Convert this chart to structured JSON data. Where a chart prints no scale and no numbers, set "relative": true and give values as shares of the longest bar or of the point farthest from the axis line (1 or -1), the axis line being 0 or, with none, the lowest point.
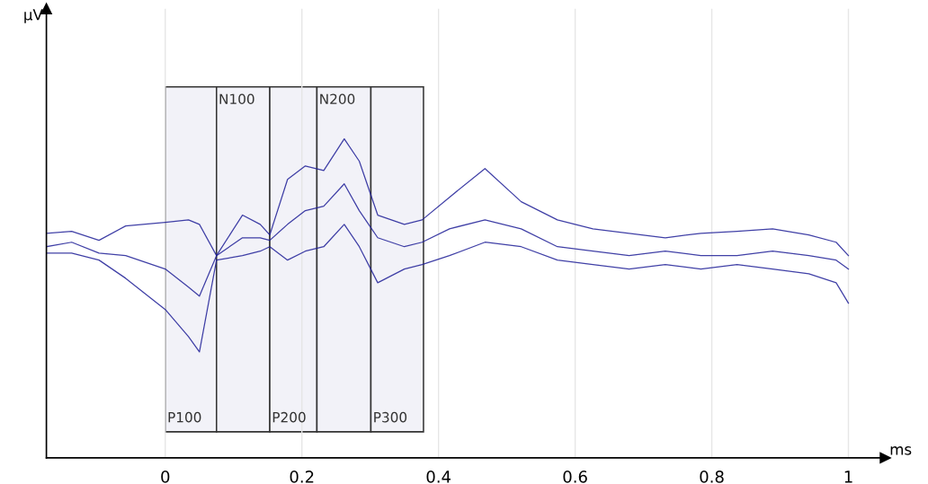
{
  "chart_data": {
    "type": "line",
    "relative": true,
    "xlabel": "ms",
    "annotations": [
      "μV"
    ],
    "x": [
      -0.174,
      -0.137,
      -0.097,
      -0.058,
      0,
      0.034,
      0.05,
      0.075,
      0.113,
      0.139,
      0.153,
      0.179,
      0.205,
      0.232,
      0.262,
      0.284,
      0.311,
      0.35,
      0.376,
      0.416,
      0.468,
      0.521,
      0.574,
      0.626,
      0.679,
      0.732,
      0.784,
      0.837,
      0.889,
      0.942,
      0.982,
      1
    ],
    "series": [
      {
        "color": "#1f1f96",
        "values": [
          0.704,
          0.71,
          0.682,
          0.727,
          0.738,
          0.746,
          0.732,
          0.634,
          0.761,
          0.732,
          0.699,
          0.873,
          0.915,
          0.901,
          1,
          0.93,
          0.761,
          0.732,
          0.746,
          0.817,
          0.907,
          0.803,
          0.746,
          0.718,
          0.704,
          0.69,
          0.704,
          0.71,
          0.718,
          0.699,
          0.676,
          0.634
        ]
      },
      {
        "color": "#1f1f96",
        "values": [
          0.662,
          0.676,
          0.642,
          0.634,
          0.592,
          0.535,
          0.507,
          0.634,
          0.69,
          0.69,
          0.682,
          0.732,
          0.775,
          0.789,
          0.859,
          0.775,
          0.69,
          0.662,
          0.676,
          0.718,
          0.746,
          0.718,
          0.662,
          0.648,
          0.634,
          0.648,
          0.634,
          0.634,
          0.648,
          0.634,
          0.62,
          0.592
        ]
      },
      {
        "color": "#1f1f96",
        "values": [
          0.642,
          0.642,
          0.62,
          0.563,
          0.465,
          0.38,
          0.332,
          0.62,
          0.634,
          0.648,
          0.662,
          0.62,
          0.648,
          0.662,
          0.732,
          0.662,
          0.549,
          0.592,
          0.606,
          0.634,
          0.676,
          0.662,
          0.62,
          0.606,
          0.592,
          0.606,
          0.592,
          0.606,
          0.592,
          0.577,
          0.549,
          0.485
        ]
      }
    ],
    "xlim": [
      -0.174,
      1.054
    ],
    "xticks": [
      0,
      0.2,
      0.4,
      0.6,
      0.8,
      1
    ],
    "grid": "x",
    "tick_labels": "x",
    "bands": [
      {
        "axis": "x",
        "from": 0,
        "to": 0.075,
        "label": "P100"
      },
      {
        "axis": "x",
        "from": 0.075,
        "to": 0.153,
        "label": "N100"
      },
      {
        "axis": "x",
        "from": 0.153,
        "to": 0.222,
        "label": "P200"
      },
      {
        "axis": "x",
        "from": 0.222,
        "to": 0.301,
        "label": "N200"
      },
      {
        "axis": "x",
        "from": 0.301,
        "to": 0.378,
        "label": "P300"
      }
    ]
  }
}
